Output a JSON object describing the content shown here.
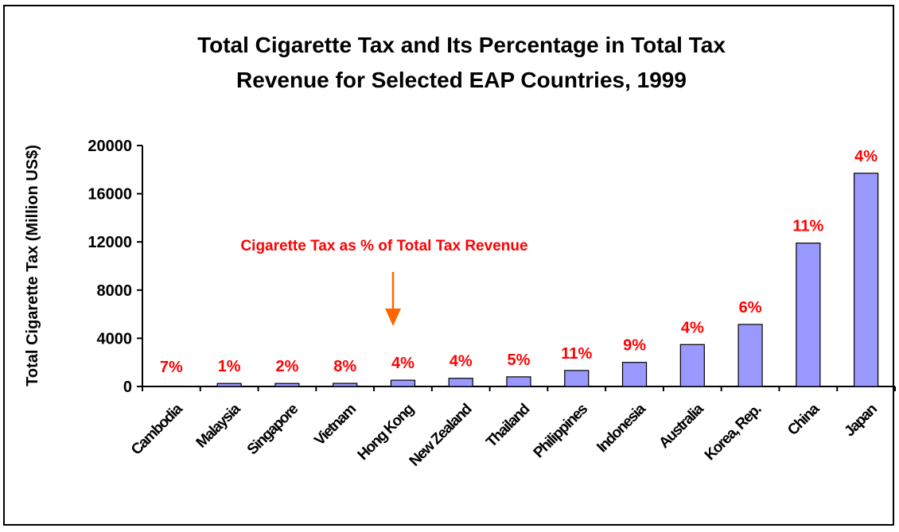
{
  "chart_data": {
    "type": "bar",
    "title_lines": [
      "Total Cigarette Tax and Its Percentage in Total Tax",
      "Revenue for Selected EAP Countries, 1999"
    ],
    "ylabel": "Total Cigarette Tax (Million US$)",
    "xlabel": "",
    "ylim": [
      0,
      20000
    ],
    "yticks": [
      0,
      4000,
      8000,
      12000,
      16000,
      20000
    ],
    "grid": false,
    "categories": [
      "Cambodia",
      "Malaysia",
      "Singapore",
      "Vietnam",
      "Hong Kong",
      "New Zealand",
      "Thailand",
      "Philippines",
      "Indonesia",
      "Australia",
      "Korea, Rep.",
      "China",
      "Japan"
    ],
    "values": [
      30,
      250,
      250,
      260,
      520,
      680,
      800,
      1330,
      2000,
      3480,
      5150,
      11900,
      17700
    ],
    "data_labels": [
      "7%",
      "1%",
      "2%",
      "8%",
      "4%",
      "4%",
      "5%",
      "11%",
      "9%",
      "4%",
      "6%",
      "11%",
      "4%"
    ],
    "annotation": "Cigarette Tax as % of Total Tax Revenue"
  },
  "colors": {
    "bar_fill": "#9999ff",
    "bar_stroke": "#000000",
    "label_red": "#ff0000",
    "arrow_orange": "#ff6600"
  }
}
